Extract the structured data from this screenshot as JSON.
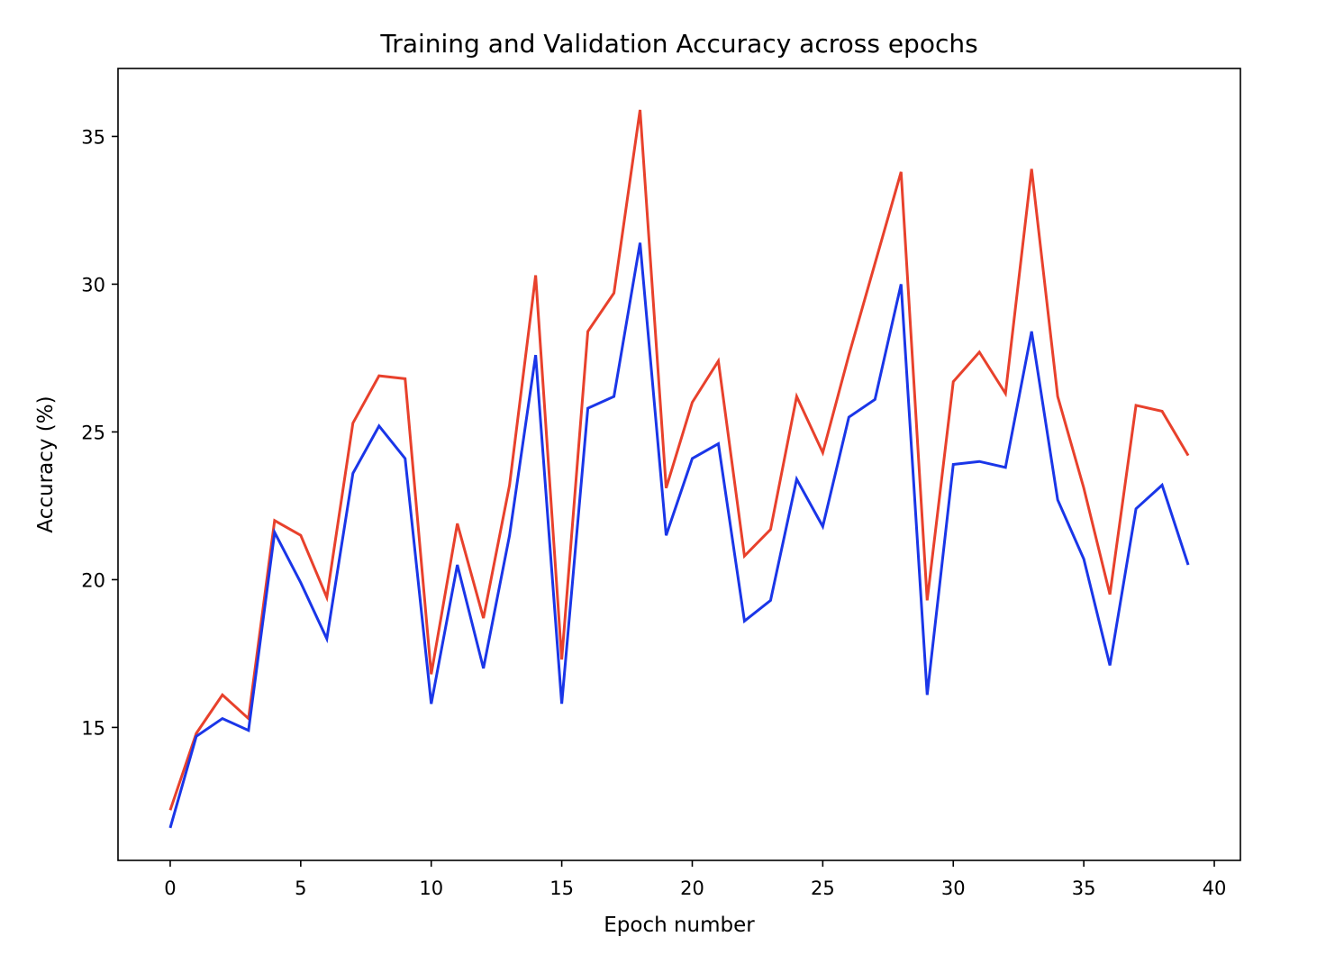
{
  "chart_data": {
    "type": "line",
    "title": "Training and Validation Accuracy across epochs",
    "xlabel": "Epoch number",
    "ylabel": "Accuracy (%)",
    "xlim": [
      -2,
      41
    ],
    "ylim": [
      10.5,
      37.3
    ],
    "xticks": [
      0,
      5,
      10,
      15,
      20,
      25,
      30,
      35,
      40
    ],
    "yticks": [
      15,
      20,
      25,
      30,
      35
    ],
    "grid": false,
    "legend": "none",
    "x": [
      0,
      1,
      2,
      3,
      4,
      5,
      6,
      7,
      8,
      9,
      10,
      11,
      12,
      13,
      14,
      15,
      16,
      17,
      18,
      19,
      20,
      21,
      22,
      23,
      24,
      25,
      26,
      27,
      28,
      29,
      30,
      31,
      32,
      33,
      34,
      35,
      36,
      37,
      38,
      39
    ],
    "series": [
      {
        "color": "#e8412c",
        "values": [
          12.2,
          14.8,
          16.1,
          15.3,
          22.0,
          21.5,
          19.4,
          25.3,
          26.9,
          26.8,
          16.8,
          21.9,
          18.7,
          23.2,
          30.3,
          17.3,
          28.4,
          29.7,
          35.9,
          23.1,
          26.0,
          27.4,
          20.8,
          21.7,
          26.2,
          24.3,
          27.6,
          30.7,
          33.8,
          19.3,
          26.7,
          27.7,
          26.3,
          33.9,
          26.2,
          23.1,
          19.5,
          25.9,
          25.7,
          24.2
        ]
      },
      {
        "color": "#1a36e8",
        "values": [
          11.6,
          14.7,
          15.3,
          14.9,
          21.6,
          19.9,
          18.0,
          23.6,
          25.2,
          24.1,
          15.8,
          20.5,
          17.0,
          21.5,
          27.6,
          15.8,
          25.8,
          26.2,
          31.4,
          21.5,
          24.1,
          24.6,
          18.6,
          19.3,
          23.4,
          21.8,
          25.5,
          26.1,
          30.0,
          16.1,
          23.9,
          24.0,
          23.8,
          28.4,
          22.7,
          20.7,
          17.1,
          22.4,
          23.2,
          20.5
        ]
      }
    ]
  }
}
